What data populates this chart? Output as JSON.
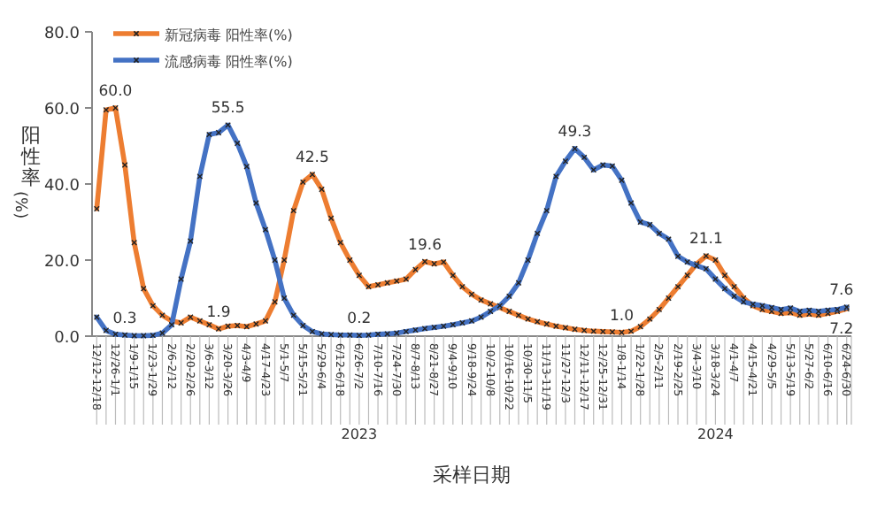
{
  "chart_data": {
    "type": "line",
    "xlabel": "采样日期",
    "ylabel": "阳性率(%)",
    "categories": [
      "12/12-12/18",
      null,
      "12/26-1/1",
      null,
      "1/9-1/15",
      null,
      "1/23-1/29",
      null,
      "2/6-2/12",
      null,
      "2/20-2/26",
      null,
      "3/6-3/12",
      null,
      "3/20-3/26",
      null,
      "4/3-4/9",
      null,
      "4/17-4/23",
      null,
      "5/1-5/7",
      null,
      "5/15-5/21",
      null,
      "5/29-6/4",
      null,
      "6/12-6/18",
      null,
      "6/26-7/2",
      null,
      "7/10-7/16",
      null,
      "7/24-7/30",
      null,
      "8/7-8/13",
      null,
      "8/21-8/27",
      null,
      "9/4-9/10",
      null,
      "9/18-9/24",
      null,
      "10/2-10/8",
      null,
      "10/16-10/22",
      null,
      "10/30-11/5",
      null,
      "11/13-11/19",
      null,
      "11/27-12/3",
      null,
      "12/11-12/17",
      null,
      "12/25-12/31",
      null,
      "1/8-1/14",
      null,
      "1/22-1/28",
      null,
      "2/5-2/11",
      null,
      "2/19-2/25",
      null,
      "3/4-3/10",
      null,
      "3/18-3/24",
      null,
      "4/1-4/7",
      null,
      "4/15-4/21",
      null,
      "4/29-5/5",
      null,
      "5/13-5/19",
      null,
      "5/27-6/2",
      null,
      "6/10-6/16",
      null,
      "6/24-6/30"
    ],
    "series": [
      {
        "name": "新冠病毒 阳性率(%)",
        "color": "#ed7d31",
        "values": [
          33.5,
          59.5,
          60.0,
          45,
          24.6,
          12.5,
          8,
          5.5,
          4,
          3.5,
          5,
          4,
          3,
          1.9,
          2.6,
          2.8,
          2.5,
          3.2,
          4,
          9,
          20,
          33,
          40.5,
          42.5,
          38.6,
          31,
          24.6,
          20,
          16,
          13,
          13.5,
          14,
          14.5,
          15,
          17.5,
          19.6,
          19,
          19.5,
          16,
          13,
          11,
          9.5,
          8.5,
          7.5,
          6.5,
          5.5,
          4.5,
          3.8,
          3.2,
          2.6,
          2.2,
          1.8,
          1.5,
          1.3,
          1.2,
          1.1,
          1.0,
          1.3,
          2.5,
          4.5,
          7,
          10,
          13,
          16,
          19,
          21.1,
          20,
          16,
          13,
          10,
          8,
          7,
          6.5,
          6,
          6.2,
          5.5,
          5.8,
          5.5,
          6,
          6.5,
          7.2
        ],
        "value_labels": [
          null,
          null,
          "60.0",
          null,
          null,
          null,
          null,
          null,
          null,
          null,
          null,
          null,
          null,
          "1.9",
          null,
          null,
          null,
          null,
          null,
          null,
          null,
          null,
          null,
          "42.5",
          null,
          null,
          null,
          null,
          null,
          null,
          null,
          null,
          null,
          null,
          null,
          "19.6",
          null,
          null,
          null,
          null,
          null,
          null,
          null,
          null,
          null,
          null,
          null,
          null,
          null,
          null,
          null,
          null,
          null,
          null,
          null,
          null,
          "1.0",
          null,
          null,
          null,
          null,
          null,
          null,
          null,
          null,
          "21.1",
          null,
          null,
          null,
          null,
          null,
          null,
          null,
          null,
          null,
          null,
          null,
          null,
          null,
          null,
          "7.2"
        ]
      },
      {
        "name": "流感病毒 阳性率(%)",
        "color": "#4472c4",
        "values": [
          5,
          1.5,
          0.5,
          0.3,
          0.1,
          0.1,
          0.2,
          0.8,
          3,
          15,
          25,
          42,
          53,
          53.5,
          55.5,
          50.7,
          44.6,
          35,
          28,
          20,
          10,
          5.5,
          2.8,
          1.2,
          0.6,
          0.4,
          0.3,
          0.3,
          0.2,
          0.3,
          0.5,
          0.6,
          0.8,
          1.2,
          1.6,
          2,
          2.3,
          2.6,
          3,
          3.5,
          4,
          5,
          6.5,
          8,
          10.5,
          14,
          20,
          27,
          33,
          42,
          46,
          49.3,
          47,
          43.7,
          45,
          44.7,
          41,
          35,
          30,
          29.3,
          27,
          25.5,
          21,
          19.5,
          18.5,
          17.7,
          15,
          12.5,
          10.5,
          9,
          8.4,
          8,
          7.5,
          7,
          7.4,
          6.5,
          6.8,
          6.5,
          6.8,
          7,
          7.6
        ],
        "value_labels": [
          null,
          null,
          null,
          "0.3",
          null,
          null,
          null,
          null,
          null,
          null,
          null,
          null,
          null,
          null,
          "55.5",
          null,
          null,
          null,
          null,
          null,
          null,
          null,
          null,
          null,
          null,
          null,
          null,
          null,
          "0.2",
          null,
          null,
          null,
          null,
          null,
          null,
          null,
          null,
          null,
          null,
          null,
          null,
          null,
          null,
          null,
          null,
          null,
          null,
          null,
          null,
          null,
          null,
          "49.3",
          null,
          null,
          null,
          null,
          null,
          null,
          null,
          null,
          null,
          null,
          null,
          null,
          null,
          null,
          null,
          null,
          null,
          null,
          null,
          null,
          null,
          null,
          null,
          null,
          null,
          null,
          null,
          null,
          "7.6"
        ]
      }
    ],
    "ylim": [
      0,
      80
    ],
    "yticks": [
      {
        "value": 0,
        "label": "0.0"
      },
      {
        "value": 20,
        "label": "20.0"
      },
      {
        "value": 40,
        "label": "40.0"
      },
      {
        "value": 60,
        "label": "60.0"
      },
      {
        "value": 80,
        "label": "80.0"
      }
    ],
    "annotations": [
      {
        "text": "2023",
        "x": "6/26-7/2"
      },
      {
        "text": "2024",
        "x": "3/18-3/24"
      }
    ],
    "marker": "cross",
    "line_style": "solid",
    "legend": "top left",
    "grid": false
  }
}
